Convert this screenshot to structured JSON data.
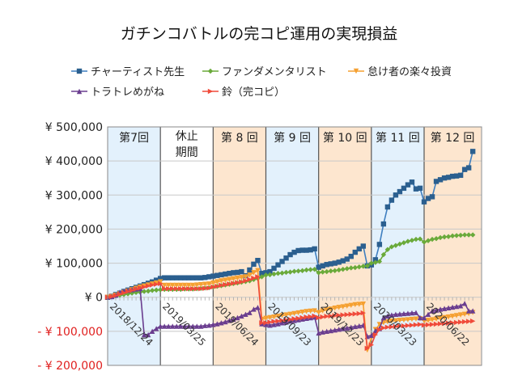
{
  "chart_data": {
    "type": "line",
    "title": "ガチンコバトルの完コピ運用の実現損益",
    "xlabel": "",
    "ylabel": "",
    "ylim": [
      -200000,
      500000
    ],
    "yticks": [
      500000,
      400000,
      300000,
      200000,
      100000,
      0,
      -100000,
      -200000
    ],
    "ytick_labels": [
      "¥ 500,000",
      "¥ 400,000",
      "¥ 300,000",
      "¥ 200,000",
      "¥ 100,000",
      "¥ 0",
      "- ¥ 100,000",
      "- ¥ 200,000"
    ],
    "xtick_labels": [
      "2018/12/24",
      "2019/03/25",
      "2019/06/24",
      "2019/09/23",
      "2019/12/23",
      "2020/03/23",
      "2020/06/22"
    ],
    "grid": true,
    "legend_position": "top",
    "periods": [
      {
        "label": "第7回",
        "start": "2018/12/24",
        "end": "2019/03/25",
        "color": "#e3f1fc"
      },
      {
        "label": "休止期間",
        "label_lines": [
          "休止",
          "期間"
        ],
        "start": "2019/03/25",
        "end": "2019/06/24",
        "color": "#ffffff"
      },
      {
        "label": "第 8 回",
        "start": "2019/06/24",
        "end": "2019/09/23",
        "color": "#fde6cf"
      },
      {
        "label": "第 9 回",
        "start": "2019/09/23",
        "end": "2019/12/23",
        "color": "#e3f1fc"
      },
      {
        "label": "第 10 回",
        "start": "2019/12/23",
        "end": "2020/03/23",
        "color": "#fde6cf"
      },
      {
        "label": "第 11 回",
        "start": "2020/03/23",
        "end": "2020/06/22",
        "color": "#e3f1fc"
      },
      {
        "label": "第 12 回",
        "start": "2020/06/22",
        "end": "2020/09/28",
        "color": "#fde6cf"
      }
    ],
    "x": [
      "2018/12/24",
      "2018/12/31",
      "2019/01/07",
      "2019/01/14",
      "2019/01/21",
      "2019/01/28",
      "2019/02/04",
      "2019/02/11",
      "2019/02/18",
      "2019/02/25",
      "2019/03/04",
      "2019/03/11",
      "2019/03/18",
      "2019/03/25",
      "2019/04/01",
      "2019/04/08",
      "2019/04/15",
      "2019/04/22",
      "2019/04/29",
      "2019/05/06",
      "2019/05/13",
      "2019/05/20",
      "2019/05/27",
      "2019/06/03",
      "2019/06/10",
      "2019/06/17",
      "2019/06/24",
      "2019/07/01",
      "2019/07/08",
      "2019/07/15",
      "2019/07/22",
      "2019/07/29",
      "2019/08/05",
      "2019/08/12",
      "2019/08/19",
      "2019/08/26",
      "2019/09/02",
      "2019/09/09",
      "2019/09/16",
      "2019/09/23",
      "2019/09/30",
      "2019/10/07",
      "2019/10/14",
      "2019/10/21",
      "2019/10/28",
      "2019/11/04",
      "2019/11/11",
      "2019/11/18",
      "2019/11/25",
      "2019/12/02",
      "2019/12/09",
      "2019/12/16",
      "2019/12/23",
      "2019/12/30",
      "2020/01/06",
      "2020/01/13",
      "2020/01/20",
      "2020/01/27",
      "2020/02/03",
      "2020/02/10",
      "2020/02/17",
      "2020/02/24",
      "2020/03/02",
      "2020/03/09",
      "2020/03/16",
      "2020/03/23",
      "2020/03/30",
      "2020/04/06",
      "2020/04/13",
      "2020/04/20",
      "2020/04/27",
      "2020/05/04",
      "2020/05/11",
      "2020/05/18",
      "2020/05/25",
      "2020/06/01",
      "2020/06/08",
      "2020/06/15",
      "2020/06/22",
      "2020/06/29",
      "2020/07/06",
      "2020/07/13",
      "2020/07/20",
      "2020/07/27",
      "2020/08/03",
      "2020/08/10",
      "2020/08/17",
      "2020/08/24",
      "2020/08/31",
      "2020/09/07",
      "2020/09/14"
    ],
    "series": [
      {
        "name": "チャーティスト先生",
        "color": "#2b5f8f",
        "line_color": "#3f7fc0",
        "marker": "square",
        "values": [
          0,
          3000,
          8000,
          12000,
          17000,
          21000,
          25000,
          29000,
          33000,
          37000,
          41000,
          45000,
          50000,
          55000,
          57000,
          57000,
          57000,
          57000,
          57000,
          57000,
          57000,
          57000,
          57000,
          57000,
          58000,
          60000,
          62000,
          64000,
          66000,
          68000,
          70000,
          72000,
          73000,
          75000,
          63000,
          80000,
          97000,
          108000,
          70000,
          72000,
          75000,
          85000,
          95000,
          105000,
          115000,
          125000,
          132000,
          137000,
          138000,
          138000,
          139000,
          142000,
          88000,
          92000,
          96000,
          98000,
          100000,
          103000,
          107000,
          112000,
          120000,
          132000,
          142000,
          150000,
          92000,
          95000,
          110000,
          155000,
          215000,
          265000,
          285000,
          300000,
          310000,
          320000,
          330000,
          338000,
          318000,
          320000,
          280000,
          290000,
          295000,
          340000,
          345000,
          350000,
          352000,
          355000,
          356000,
          358000,
          375000,
          380000,
          428000
        ]
      },
      {
        "name": "ファンダメンタリスト",
        "color": "#6aaa3a",
        "line_color": "#6aaa3a",
        "marker": "diamond",
        "values": [
          0,
          2000,
          4000,
          6000,
          8000,
          10000,
          12000,
          14000,
          15000,
          17000,
          18000,
          20000,
          21000,
          22000,
          23000,
          23000,
          23000,
          23000,
          23000,
          24000,
          24000,
          24000,
          25000,
          26000,
          27000,
          28000,
          30000,
          32000,
          34000,
          36000,
          38000,
          40000,
          42000,
          44000,
          46000,
          48000,
          52000,
          55000,
          60000,
          65000,
          66000,
          68000,
          70000,
          71000,
          73000,
          74000,
          76000,
          77000,
          78000,
          80000,
          81000,
          82000,
          72000,
          74000,
          75000,
          77000,
          78000,
          80000,
          82000,
          84000,
          86000,
          87000,
          89000,
          91000,
          92000,
          100000,
          102000,
          105000,
          125000,
          140000,
          148000,
          152000,
          156000,
          160000,
          164000,
          167000,
          170000,
          171000,
          162000,
          166000,
          170000,
          172000,
          175000,
          177000,
          178000,
          180000,
          181000,
          182000,
          183000,
          183000,
          183000
        ]
      },
      {
        "name": "怠け者の楽々投資",
        "color": "#f5a031",
        "line_color": "#f5a031",
        "marker": "triangle-down",
        "values": [
          0,
          2000,
          6000,
          10000,
          14000,
          18000,
          22000,
          26000,
          30000,
          33000,
          36000,
          39000,
          42000,
          45000,
          35000,
          35000,
          35000,
          35000,
          35000,
          35000,
          35000,
          35000,
          36000,
          37000,
          38000,
          39000,
          42000,
          45000,
          48000,
          50000,
          52000,
          54000,
          56000,
          58000,
          60000,
          65000,
          72000,
          78000,
          -65000,
          -62000,
          -60000,
          -58000,
          -56000,
          -54000,
          -52000,
          -50000,
          -48000,
          -46000,
          -44000,
          -42000,
          -41000,
          -40000,
          -45000,
          -40000,
          -37000,
          -35000,
          -32000,
          -30000,
          -28000,
          -26000,
          -24000,
          -22000,
          -21000,
          -20000,
          -155000,
          -120000,
          -95000,
          -80000,
          -75000,
          -72000,
          -70000,
          -69000,
          -68000,
          -67000,
          -66000,
          -65000,
          -64000,
          -63000,
          -70000,
          -68000,
          -66000,
          -64000,
          -62000,
          -60000,
          -58000,
          -56000,
          -54000,
          -52000,
          -50000,
          -48000,
          -45000
        ]
      },
      {
        "name": "トラトレめがね",
        "color": "#6a3d8f",
        "line_color": "#6a3d8f",
        "marker": "triangle-up",
        "values": [
          0,
          2000,
          6000,
          15000,
          18000,
          20000,
          22000,
          24000,
          26000,
          -110000,
          -110000,
          -100000,
          -92000,
          -85000,
          -85000,
          -85000,
          -85000,
          -85000,
          -85000,
          -85000,
          -85000,
          -85000,
          -85000,
          -85000,
          -83000,
          -82000,
          -80000,
          -78000,
          -75000,
          -72000,
          -68000,
          -65000,
          -60000,
          -55000,
          -50000,
          -45000,
          -35000,
          -30000,
          -78000,
          -80000,
          -82000,
          -80000,
          -78000,
          -75000,
          -73000,
          -70000,
          -68000,
          -66000,
          -64000,
          -62000,
          -60000,
          -58000,
          -105000,
          -102000,
          -100000,
          -98000,
          -96000,
          -94000,
          -92000,
          -90000,
          -88000,
          -86000,
          -84000,
          -82000,
          -115000,
          -112000,
          -98000,
          -92000,
          -60000,
          -55000,
          -52000,
          -50000,
          -49000,
          -48000,
          -47000,
          -46000,
          -45000,
          -60000,
          -60000,
          -50000,
          -40000,
          -38000,
          -35000,
          -33000,
          -31000,
          -29000,
          -27000,
          -25000,
          -18000,
          -40000,
          -40000
        ]
      },
      {
        "name": "鈴（完コピ）",
        "color": "#f04a3a",
        "line_color": "#f04a3a",
        "marker": "triangle-right",
        "values": [
          0,
          2000,
          5000,
          9000,
          13000,
          17000,
          20000,
          24000,
          27000,
          30000,
          33000,
          36000,
          38000,
          40000,
          25000,
          25000,
          25000,
          25000,
          25000,
          25000,
          25000,
          25000,
          25000,
          25000,
          26000,
          27000,
          30000,
          32000,
          35000,
          37000,
          39000,
          41000,
          43000,
          45000,
          48000,
          52000,
          56000,
          60000,
          -75000,
          -75000,
          -73000,
          -71000,
          -70000,
          -68000,
          -66000,
          -65000,
          -63000,
          -62000,
          -60000,
          -58000,
          -57000,
          -55000,
          -60000,
          -58000,
          -56000,
          -55000,
          -54000,
          -53000,
          -52000,
          -51000,
          -50000,
          -49000,
          -48000,
          -46000,
          -150000,
          -140000,
          -110000,
          -95000,
          -90000,
          -88000,
          -87000,
          -86000,
          -85000,
          -84000,
          -83000,
          -82000,
          -81000,
          -80000,
          -82000,
          -81000,
          -80000,
          -79000,
          -78000,
          -77000,
          -76000,
          -75000,
          -74000,
          -73000,
          -72000,
          -71000,
          -70000
        ]
      }
    ]
  }
}
